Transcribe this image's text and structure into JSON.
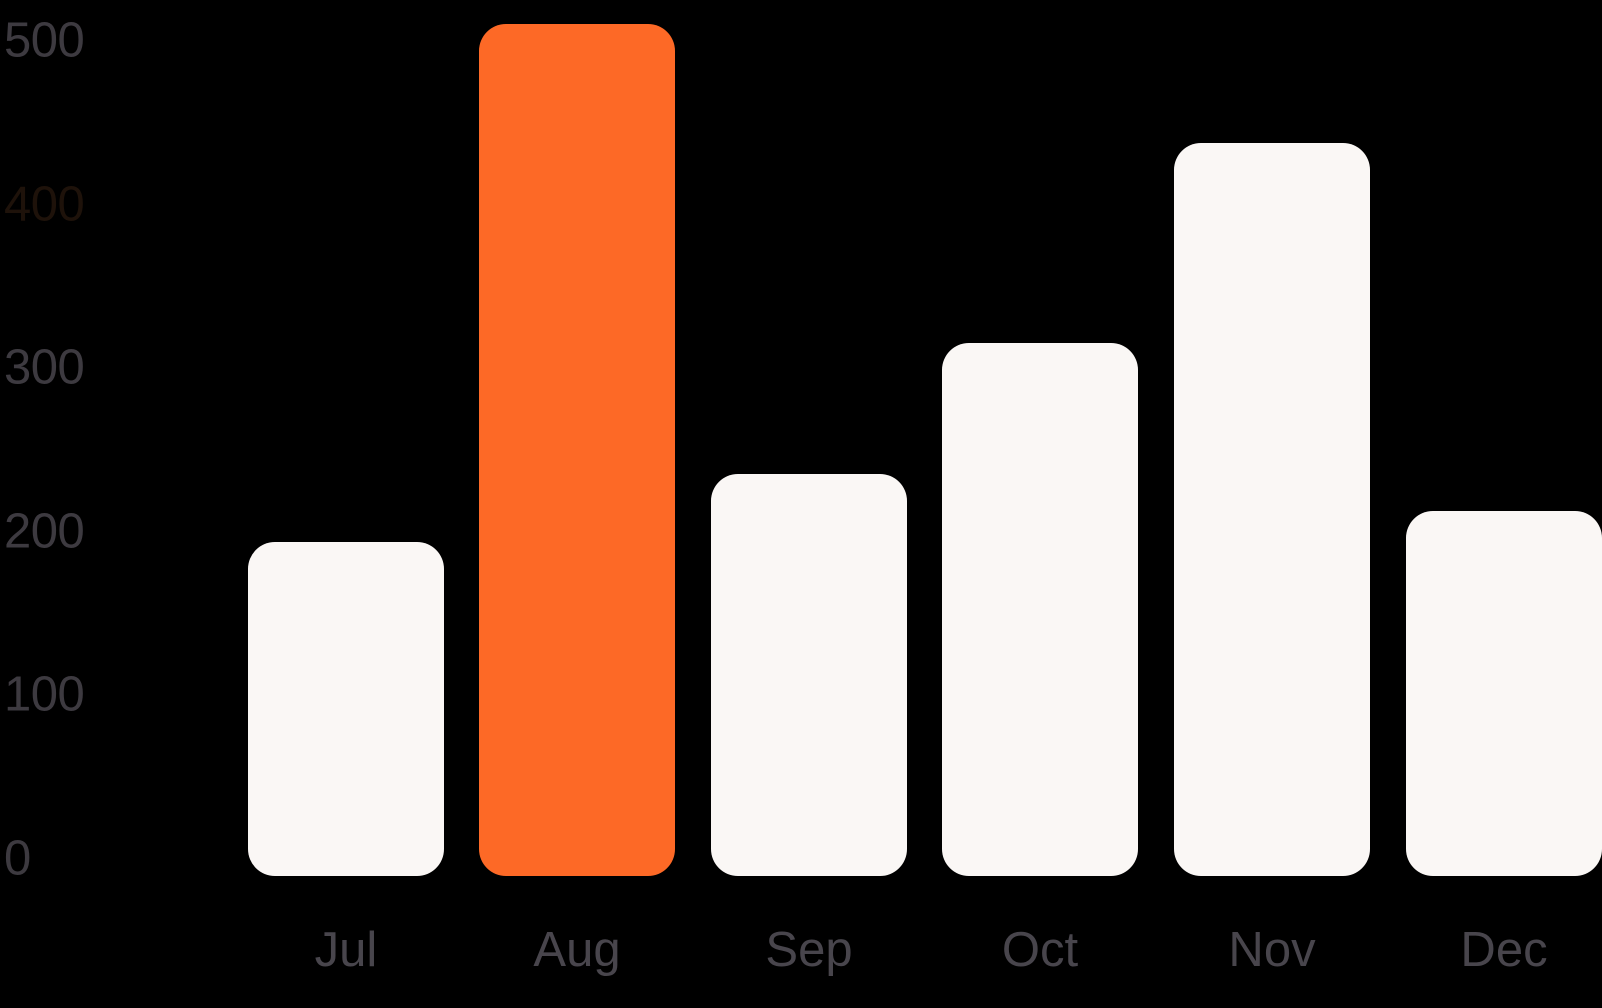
{
  "chart_data": {
    "type": "bar",
    "title": "",
    "categories": [
      "Jul",
      "Aug",
      "Sep",
      "Oct",
      "Nov",
      "Dec"
    ],
    "values": [
      204,
      521,
      246,
      326,
      448,
      223
    ],
    "highlighted_category": "Aug",
    "y_ticks": [
      0,
      100,
      200,
      300,
      400,
      500
    ],
    "y_tick_dim_value": 400,
    "ylim": [
      0,
      525
    ],
    "grid": false,
    "legend": false,
    "colors": {
      "background": "#000000",
      "bar": "#faf7f5",
      "bar_highlight": "#fd6926",
      "y_tick_label": "#3d3a40",
      "y_tick_label_dim": "#1e120a",
      "x_tick_label": "#48454c"
    }
  }
}
